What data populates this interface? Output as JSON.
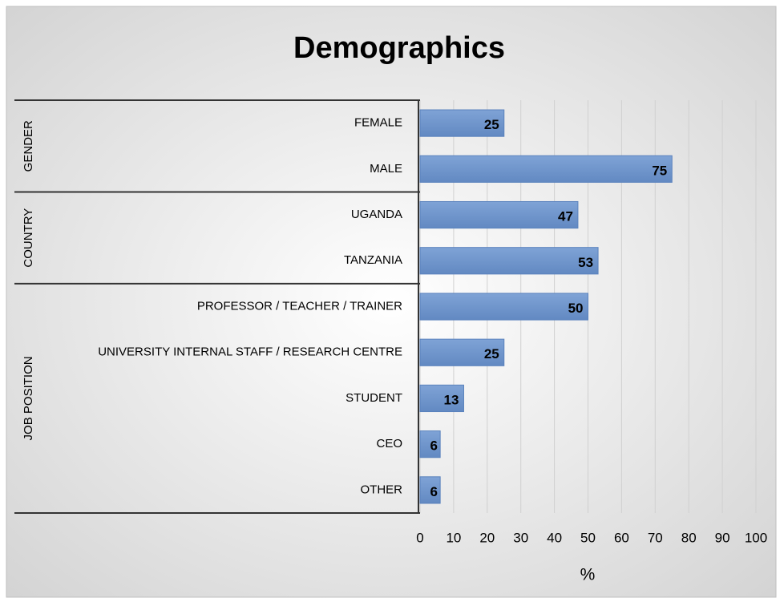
{
  "chart_data": {
    "type": "bar",
    "orientation": "horizontal",
    "title": "Demographics",
    "x_label": "%",
    "color": "#6f97cf",
    "grid": true,
    "groups": [
      {
        "name": "GENDER",
        "categories": [
          "FEMALE",
          "MALE"
        ],
        "values": [
          25,
          75
        ]
      },
      {
        "name": "COUNTRY",
        "categories": [
          "UGANDA",
          "TANZANIA"
        ],
        "values": [
          47,
          53
        ]
      },
      {
        "name": "JOB POSITION",
        "categories": [
          "PROFESSOR / TEACHER / TRAINER",
          "UNIVERSITY INTERNAL STAFF / RESEARCH CENTRE",
          "STUDENT",
          "CEO",
          "OTHER"
        ],
        "values": [
          50,
          25,
          13,
          6,
          6
        ]
      }
    ],
    "xlim": [
      0,
      100
    ],
    "xticks": [
      0,
      10,
      20,
      30,
      40,
      50,
      60,
      70,
      80,
      90,
      100
    ]
  }
}
